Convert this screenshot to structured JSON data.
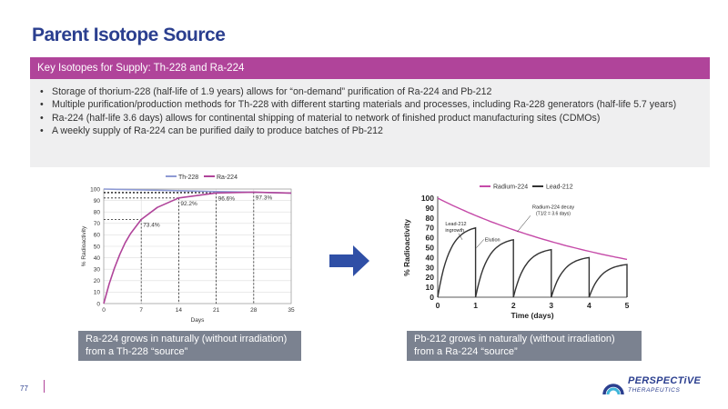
{
  "title": "Parent Isotope Source",
  "banner": "Key Isotopes for Supply: Th-228 and Ra-224",
  "bullets": [
    "Storage of thorium-228 (half-life of 1.9 years) allows for “on-demand” purification of Ra-224 and Pb-212",
    "Multiple purification/production methods for Th-228 with different starting materials and processes, including Ra-228 generators (half-life 5.7 years)",
    "Ra-224 (half-life 3.6 days) allows for continental shipping of material to network of finished product manufacturing sites (CDMOs)",
    "A weekly supply of Ra-224 can be purified daily to produce batches of Pb-212"
  ],
  "captions": {
    "left": "Ra-224 grows in naturally (without irradiation) from a Th-228 “source”",
    "right": "Pb-212 grows in naturally (without irradiation) from a Ra-224 “source”"
  },
  "page_number": "77",
  "logo": {
    "name": "PERSPECTiVE",
    "sub": "THERAPEUTICS"
  },
  "colors": {
    "primary": "#2b3f8f",
    "accent": "#b0449a",
    "caption_bg": "#7b8290"
  },
  "chart_data": [
    {
      "type": "line",
      "legend": [
        "Th-228",
        "Ra-224"
      ],
      "legend_placement": "top",
      "xlabel": "Days",
      "ylabel": "% Radioactivity",
      "xlim": [
        0,
        35
      ],
      "ylim": [
        0,
        100
      ],
      "x_ticks": [
        0,
        7,
        14,
        21,
        28,
        35
      ],
      "y_ticks": [
        0,
        10,
        20,
        30,
        40,
        50,
        60,
        70,
        80,
        90,
        100
      ],
      "grid": true,
      "series": [
        {
          "name": "Th-228",
          "color": "#8e9ad4",
          "x": [
            0,
            7,
            14,
            21,
            28,
            35
          ],
          "y": [
            100,
            99.3,
            98.6,
            97.8,
            97.2,
            96.5
          ]
        },
        {
          "name": "Ra-224",
          "color": "#b0449a",
          "x": [
            0,
            1,
            2,
            3,
            4,
            5,
            7,
            10,
            14,
            21,
            28,
            35
          ],
          "y": [
            0,
            17,
            31,
            43,
            53,
            61,
            73.4,
            84,
            92.2,
            96.6,
            97.3,
            96.5
          ]
        }
      ],
      "annotations": [
        {
          "x": 7,
          "y": 73.4,
          "text": "73.4%"
        },
        {
          "x": 14,
          "y": 92.2,
          "text": "92.2%"
        },
        {
          "x": 21,
          "y": 96.6,
          "text": "96.6%"
        },
        {
          "x": 28,
          "y": 97.3,
          "text": "97.3%"
        }
      ]
    },
    {
      "type": "line",
      "legend": [
        "Radium-224",
        "Lead-212"
      ],
      "legend_placement": "top",
      "xlabel": "Time (days)",
      "ylabel": "% Radioactivity",
      "xlim": [
        0,
        5
      ],
      "ylim": [
        0,
        100
      ],
      "x_ticks": [
        0,
        1,
        2,
        3,
        4,
        5
      ],
      "y_ticks": [
        0,
        10,
        20,
        30,
        40,
        50,
        60,
        70,
        80,
        90,
        100
      ],
      "grid": false,
      "series": [
        {
          "name": "Radium-224",
          "color": "#c54aa8",
          "x": [
            0,
            1,
            2,
            3,
            4,
            5
          ],
          "y": [
            100,
            82,
            68,
            56,
            46,
            38
          ]
        },
        {
          "name": "Lead-212",
          "color": "#333333",
          "segments": [
            {
              "x": [
                0,
                0.25,
                0.5,
                0.75,
                1.0
              ],
              "y": [
                0,
                38,
                56,
                66,
                70
              ]
            },
            {
              "x": [
                1.0,
                1.25,
                1.5,
                1.75,
                2.0
              ],
              "y": [
                0,
                30,
                46,
                54,
                58
              ]
            },
            {
              "x": [
                2.0,
                2.25,
                2.5,
                2.75,
                3.0
              ],
              "y": [
                0,
                25,
                38,
                45,
                48
              ]
            },
            {
              "x": [
                3.0,
                3.25,
                3.5,
                3.75,
                4.0
              ],
              "y": [
                0,
                20,
                31,
                37,
                40
              ]
            },
            {
              "x": [
                4.0,
                4.25,
                4.5,
                4.75,
                5.0
              ],
              "y": [
                0,
                17,
                26,
                31,
                33
              ]
            }
          ]
        }
      ],
      "annotations": [
        {
          "x": 0.2,
          "y": 80,
          "text": "Lead-212",
          "text2": "ingrowth"
        },
        {
          "x": 1.1,
          "y": 62,
          "text": "Elution"
        },
        {
          "x": 2.5,
          "y": 86,
          "text": "Radium-224 decay",
          "text2": "(T1/2 = 3.6 days)"
        }
      ]
    }
  ]
}
